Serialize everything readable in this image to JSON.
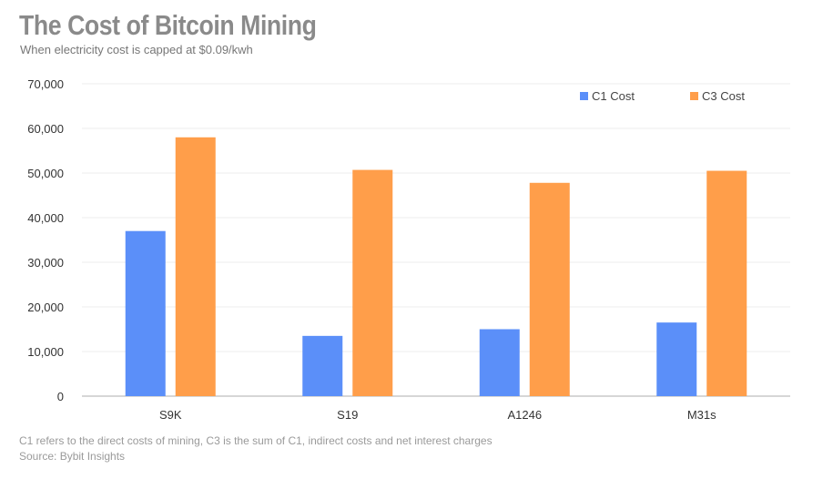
{
  "header": {
    "title": "The Cost of Bitcoin Mining",
    "subtitle": "When electricity cost is capped at $0.09/kwh"
  },
  "footer": {
    "note": "C1 refers to the direct costs of mining, C3 is the sum of C1, indirect costs and net interest charges",
    "source": "Source: Bybit Insights"
  },
  "colors": {
    "c1": "#5b8ff9",
    "c3": "#ff9e4a"
  },
  "chart_data": {
    "type": "bar",
    "title": "The Cost of Bitcoin Mining",
    "subtitle": "When electricity cost is capped at $0.09/kwh",
    "categories": [
      "S9K",
      "S19",
      "A1246",
      "M31s"
    ],
    "series": [
      {
        "name": "C1 Cost",
        "values": [
          37000,
          13500,
          15000,
          16500
        ]
      },
      {
        "name": "C3 Cost",
        "values": [
          58000,
          50700,
          47800,
          50500
        ]
      }
    ],
    "ylim": [
      0,
      70000
    ],
    "yticks": [
      "0",
      "10,000",
      "20,000",
      "30,000",
      "40,000",
      "50,000",
      "60,000",
      "70,000"
    ],
    "grid": true,
    "legend": "top-right"
  }
}
